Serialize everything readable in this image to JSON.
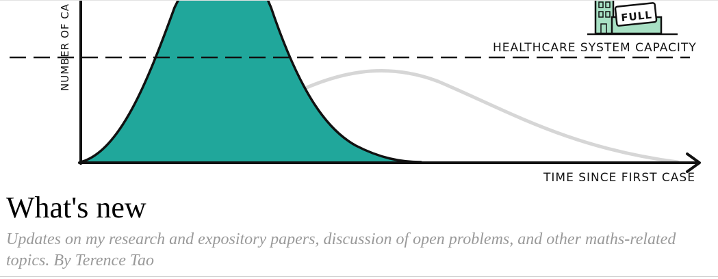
{
  "header": {
    "image": {
      "y_axis_label": "NUMBER OF CA",
      "capacity_label": "HEALTHCARE SYSTEM CAPACITY",
      "x_axis_label": "TIME SINCE FIRST CASE",
      "hospital_sign": "FULL",
      "colors": {
        "peak_fill": "#20a79b",
        "flat_curve": "#d6d6d6",
        "hospital": "#a8e0c4",
        "ink": "#111111"
      }
    },
    "title": "What's new",
    "tagline": "Updates on my research and expository papers, discussion of open problems, and other maths-related topics. By Terence Tao"
  }
}
